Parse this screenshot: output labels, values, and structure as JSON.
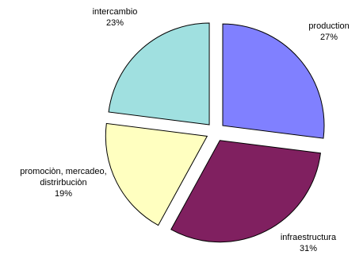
{
  "chart_data": {
    "type": "pie",
    "exploded": true,
    "slices": [
      {
        "label": [
          "production"
        ],
        "value": 27,
        "percent_label": "27%",
        "color": "#8080ff"
      },
      {
        "label": [
          "infraestructura"
        ],
        "value": 31,
        "percent_label": "31%",
        "color": "#802060"
      },
      {
        "label": [
          "promociòn, mercadeo,",
          "distrirbuciòn"
        ],
        "value": 19,
        "percent_label": "19%",
        "color": "#ffffc0"
      },
      {
        "label": [
          "intercambio"
        ],
        "value": 23,
        "percent_label": "23%",
        "color": "#a0e0e0"
      }
    ]
  }
}
